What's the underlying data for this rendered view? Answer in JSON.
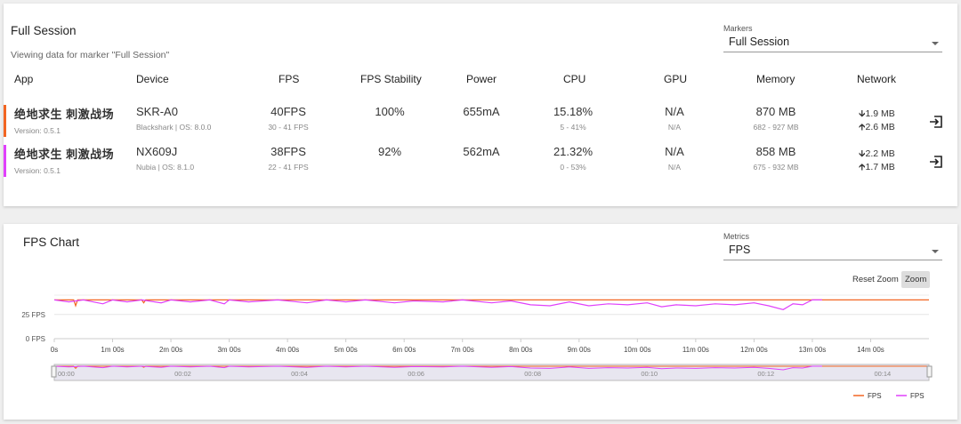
{
  "session": {
    "title": "Full Session",
    "subtitle": "Viewing data for marker \"Full Session\"",
    "markers": {
      "label": "Markers",
      "value": "Full Session"
    },
    "headers": [
      "App",
      "Device",
      "FPS",
      "FPS Stability",
      "Power",
      "CPU",
      "GPU",
      "Memory",
      "Network"
    ],
    "rows": [
      {
        "color": "#f26522",
        "app": "绝地求生 刺激战场",
        "version": "Version: 0.5.1",
        "device": "SKR-A0",
        "device_info": "Blackshark | OS: 8.0.0",
        "fps": "40FPS",
        "fps_range": "30 - 41 FPS",
        "stability": "100%",
        "power": "655mA",
        "cpu": "15.18%",
        "cpu_range": "5 - 41%",
        "gpu": "N/A",
        "gpu_sub": "N/A",
        "memory": "870 MB",
        "memory_range": "682 - 927 MB",
        "net_down": "1.9 MB",
        "net_up": "2.6 MB"
      },
      {
        "color": "#e040fb",
        "app": "绝地求生 刺激战场",
        "version": "Version: 0.5.1",
        "device": "NX609J",
        "device_info": "Nubia | OS: 8.1.0",
        "fps": "38FPS",
        "fps_range": "22 - 41 FPS",
        "stability": "92%",
        "power": "562mA",
        "cpu": "21.32%",
        "cpu_range": "0 - 53%",
        "gpu": "N/A",
        "gpu_sub": "N/A",
        "memory": "858 MB",
        "memory_range": "675 - 932 MB",
        "net_down": "2.2 MB",
        "net_up": "1.7 MB"
      }
    ]
  },
  "chart_panel": {
    "title": "FPS Chart",
    "metrics": {
      "label": "Metrics",
      "value": "FPS"
    },
    "reset_zoom": "Reset Zoom",
    "zoom": "Zoom"
  },
  "chart_data": {
    "type": "line",
    "y_ticks": [
      "25 FPS",
      "0 FPS"
    ],
    "x_ticks": [
      "0s",
      "1m 00s",
      "2m 00s",
      "3m 00s",
      "4m 00s",
      "5m 00s",
      "6m 00s",
      "7m 00s",
      "8m 00s",
      "9m 00s",
      "10m 00s",
      "11m 00s",
      "12m 00s",
      "13m 00s",
      "14m 00s"
    ],
    "navigator_ticks": [
      "00:00",
      "00:02",
      "00:04",
      "00:06",
      "00:08",
      "00:10",
      "00:12",
      "00:14"
    ],
    "ylim": [
      0,
      45
    ],
    "xlim_seconds": [
      0,
      900
    ],
    "series": [
      {
        "name": "FPS",
        "color": "#f26522",
        "points": [
          [
            0,
            40
          ],
          [
            20,
            40
          ],
          [
            22,
            34
          ],
          [
            24,
            40
          ],
          [
            60,
            40
          ],
          [
            90,
            40
          ],
          [
            92,
            37
          ],
          [
            94,
            40
          ],
          [
            180,
            40
          ],
          [
            300,
            40
          ],
          [
            420,
            40
          ],
          [
            500,
            40
          ],
          [
            560,
            40
          ],
          [
            620,
            40
          ],
          [
            700,
            40
          ],
          [
            760,
            40
          ],
          [
            800,
            40
          ],
          [
            900,
            40
          ]
        ]
      },
      {
        "name": "FPS",
        "color": "#e040fb",
        "points": [
          [
            0,
            40
          ],
          [
            15,
            38
          ],
          [
            30,
            40
          ],
          [
            50,
            36
          ],
          [
            60,
            40
          ],
          [
            75,
            38
          ],
          [
            90,
            40
          ],
          [
            110,
            37
          ],
          [
            120,
            40
          ],
          [
            140,
            38
          ],
          [
            160,
            40
          ],
          [
            175,
            36
          ],
          [
            180,
            40
          ],
          [
            200,
            38
          ],
          [
            230,
            40
          ],
          [
            260,
            37
          ],
          [
            280,
            40
          ],
          [
            300,
            38
          ],
          [
            320,
            40
          ],
          [
            350,
            37
          ],
          [
            370,
            39
          ],
          [
            400,
            38
          ],
          [
            420,
            40
          ],
          [
            450,
            37
          ],
          [
            470,
            39
          ],
          [
            490,
            35
          ],
          [
            510,
            34
          ],
          [
            530,
            38
          ],
          [
            550,
            34
          ],
          [
            570,
            36
          ],
          [
            590,
            35
          ],
          [
            610,
            37
          ],
          [
            625,
            33
          ],
          [
            640,
            35
          ],
          [
            660,
            34
          ],
          [
            680,
            36
          ],
          [
            700,
            35
          ],
          [
            720,
            37
          ],
          [
            735,
            34
          ],
          [
            750,
            30
          ],
          [
            760,
            36
          ],
          [
            770,
            35
          ],
          [
            780,
            40
          ],
          [
            790,
            40
          ]
        ]
      }
    ]
  }
}
